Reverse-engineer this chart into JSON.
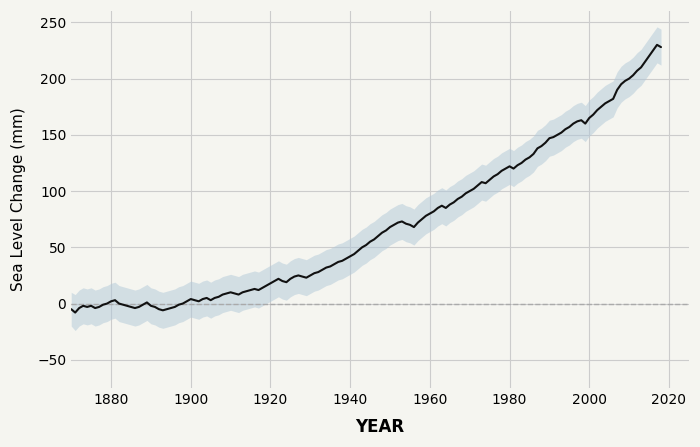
{
  "xlabel": "YEAR",
  "ylabel": "Sea Level Change (mm)",
  "xlim": [
    1870,
    2025
  ],
  "ylim": [
    -75,
    260
  ],
  "yticks": [
    -50,
    0,
    50,
    100,
    150,
    200,
    250
  ],
  "xticks": [
    1880,
    1900,
    1920,
    1940,
    1960,
    1980,
    2000,
    2020
  ],
  "line_color": "#111111",
  "fill_color": "#b0c8d8",
  "fill_alpha": 0.5,
  "zero_line_color": "#aaaaaa",
  "grid_color": "#cccccc",
  "background_color": "#f5f5f0",
  "years": [
    1870,
    1871,
    1872,
    1873,
    1874,
    1875,
    1876,
    1877,
    1878,
    1879,
    1880,
    1881,
    1882,
    1883,
    1884,
    1885,
    1886,
    1887,
    1888,
    1889,
    1890,
    1891,
    1892,
    1893,
    1894,
    1895,
    1896,
    1897,
    1898,
    1899,
    1900,
    1901,
    1902,
    1903,
    1904,
    1905,
    1906,
    1907,
    1908,
    1909,
    1910,
    1911,
    1912,
    1913,
    1914,
    1915,
    1916,
    1917,
    1918,
    1919,
    1920,
    1921,
    1922,
    1923,
    1924,
    1925,
    1926,
    1927,
    1928,
    1929,
    1930,
    1931,
    1932,
    1933,
    1934,
    1935,
    1936,
    1937,
    1938,
    1939,
    1940,
    1941,
    1942,
    1943,
    1944,
    1945,
    1946,
    1947,
    1948,
    1949,
    1950,
    1951,
    1952,
    1953,
    1954,
    1955,
    1956,
    1957,
    1958,
    1959,
    1960,
    1961,
    1962,
    1963,
    1964,
    1965,
    1966,
    1967,
    1968,
    1969,
    1970,
    1971,
    1972,
    1973,
    1974,
    1975,
    1976,
    1977,
    1978,
    1979,
    1980,
    1981,
    1982,
    1983,
    1984,
    1985,
    1986,
    1987,
    1988,
    1989,
    1990,
    1991,
    1992,
    1993,
    1994,
    1995,
    1996,
    1997,
    1998,
    1999,
    2000,
    2001,
    2002,
    2003,
    2004,
    2005,
    2006,
    2007,
    2008,
    2009,
    2010,
    2011,
    2012,
    2013,
    2014,
    2015,
    2016,
    2017,
    2018
  ],
  "values": [
    -5.0,
    -8.0,
    -4.0,
    -2.0,
    -3.0,
    -2.0,
    -4.0,
    -3.0,
    -1.0,
    0.0,
    2.0,
    3.0,
    0.0,
    -1.0,
    -2.0,
    -3.0,
    -4.0,
    -3.0,
    -1.0,
    1.0,
    -2.0,
    -3.0,
    -5.0,
    -6.0,
    -5.0,
    -4.0,
    -3.0,
    -1.0,
    0.0,
    2.0,
    4.0,
    3.0,
    2.0,
    4.0,
    5.0,
    3.0,
    5.0,
    6.0,
    8.0,
    9.0,
    10.0,
    9.0,
    8.0,
    10.0,
    11.0,
    12.0,
    13.0,
    12.0,
    14.0,
    16.0,
    18.0,
    20.0,
    22.0,
    20.0,
    19.0,
    22.0,
    24.0,
    25.0,
    24.0,
    23.0,
    25.0,
    27.0,
    28.0,
    30.0,
    32.0,
    33.0,
    35.0,
    37.0,
    38.0,
    40.0,
    42.0,
    44.0,
    47.0,
    50.0,
    52.0,
    55.0,
    57.0,
    60.0,
    63.0,
    65.0,
    68.0,
    70.0,
    72.0,
    73.0,
    71.0,
    70.0,
    68.0,
    72.0,
    75.0,
    78.0,
    80.0,
    82.0,
    85.0,
    87.0,
    85.0,
    88.0,
    90.0,
    93.0,
    95.0,
    98.0,
    100.0,
    102.0,
    105.0,
    108.0,
    107.0,
    110.0,
    113.0,
    115.0,
    118.0,
    120.0,
    122.0,
    120.0,
    123.0,
    125.0,
    128.0,
    130.0,
    133.0,
    138.0,
    140.0,
    143.0,
    147.0,
    148.0,
    150.0,
    152.0,
    155.0,
    157.0,
    160.0,
    162.0,
    163.0,
    160.0,
    165.0,
    168.0,
    172.0,
    175.0,
    178.0,
    180.0,
    182.0,
    190.0,
    195.0,
    198.0,
    200.0,
    203.0,
    207.0,
    210.0,
    215.0,
    220.0,
    225.0,
    230.0,
    228.0
  ],
  "upper": [
    10.0,
    8.0,
    12.0,
    14.0,
    13.0,
    14.0,
    12.0,
    13.0,
    15.0,
    16.0,
    18.0,
    19.0,
    16.0,
    15.0,
    14.0,
    13.0,
    12.0,
    13.0,
    15.0,
    17.0,
    14.0,
    13.0,
    11.0,
    10.0,
    11.0,
    12.0,
    13.0,
    15.0,
    16.0,
    18.0,
    20.0,
    19.0,
    18.0,
    20.0,
    21.0,
    19.0,
    21.0,
    22.0,
    24.0,
    25.0,
    26.0,
    25.0,
    24.0,
    26.0,
    27.0,
    28.0,
    29.0,
    28.0,
    30.0,
    32.0,
    34.0,
    36.0,
    38.0,
    36.0,
    35.0,
    38.0,
    40.0,
    41.0,
    40.0,
    39.0,
    41.0,
    43.0,
    44.0,
    46.0,
    48.0,
    49.0,
    51.0,
    53.0,
    54.0,
    56.0,
    58.0,
    60.0,
    63.0,
    66.0,
    68.0,
    71.0,
    73.0,
    76.0,
    79.0,
    81.0,
    84.0,
    86.0,
    88.0,
    89.0,
    87.0,
    86.0,
    84.0,
    88.0,
    91.0,
    94.0,
    96.0,
    98.0,
    101.0,
    103.0,
    101.0,
    104.0,
    106.0,
    109.0,
    111.0,
    114.0,
    116.0,
    118.0,
    121.0,
    124.0,
    123.0,
    126.0,
    129.0,
    131.0,
    134.0,
    136.0,
    138.0,
    136.0,
    139.0,
    141.0,
    144.0,
    146.0,
    149.0,
    154.0,
    156.0,
    159.0,
    163.0,
    164.0,
    166.0,
    168.0,
    171.0,
    173.0,
    176.0,
    178.0,
    179.0,
    176.0,
    181.0,
    184.0,
    188.0,
    191.0,
    194.0,
    196.0,
    198.0,
    206.0,
    211.0,
    214.0,
    216.0,
    219.0,
    223.0,
    226.0,
    231.0,
    236.0,
    241.0,
    246.0,
    244.0
  ],
  "lower": [
    -20.0,
    -24.0,
    -20.0,
    -18.0,
    -19.0,
    -18.0,
    -20.0,
    -19.0,
    -17.0,
    -16.0,
    -14.0,
    -13.0,
    -16.0,
    -17.0,
    -18.0,
    -19.0,
    -20.0,
    -19.0,
    -17.0,
    -15.0,
    -18.0,
    -19.0,
    -21.0,
    -22.0,
    -21.0,
    -20.0,
    -19.0,
    -17.0,
    -16.0,
    -14.0,
    -12.0,
    -13.0,
    -14.0,
    -12.0,
    -11.0,
    -13.0,
    -11.0,
    -10.0,
    -8.0,
    -7.0,
    -6.0,
    -7.0,
    -8.0,
    -6.0,
    -5.0,
    -4.0,
    -3.0,
    -4.0,
    -2.0,
    0.0,
    2.0,
    4.0,
    6.0,
    4.0,
    3.0,
    6.0,
    8.0,
    9.0,
    8.0,
    7.0,
    9.0,
    11.0,
    12.0,
    14.0,
    16.0,
    17.0,
    19.0,
    21.0,
    22.0,
    24.0,
    26.0,
    28.0,
    31.0,
    34.0,
    36.0,
    39.0,
    41.0,
    44.0,
    47.0,
    49.0,
    52.0,
    54.0,
    56.0,
    57.0,
    55.0,
    54.0,
    52.0,
    56.0,
    59.0,
    62.0,
    64.0,
    66.0,
    69.0,
    71.0,
    69.0,
    72.0,
    74.0,
    77.0,
    79.0,
    82.0,
    84.0,
    86.0,
    89.0,
    92.0,
    91.0,
    94.0,
    97.0,
    99.0,
    102.0,
    104.0,
    106.0,
    104.0,
    107.0,
    109.0,
    112.0,
    114.0,
    117.0,
    122.0,
    124.0,
    127.0,
    131.0,
    132.0,
    134.0,
    136.0,
    139.0,
    141.0,
    144.0,
    146.0,
    147.0,
    144.0,
    149.0,
    152.0,
    156.0,
    159.0,
    162.0,
    164.0,
    166.0,
    174.0,
    179.0,
    182.0,
    184.0,
    187.0,
    191.0,
    194.0,
    199.0,
    204.0,
    209.0,
    214.0,
    212.0
  ]
}
